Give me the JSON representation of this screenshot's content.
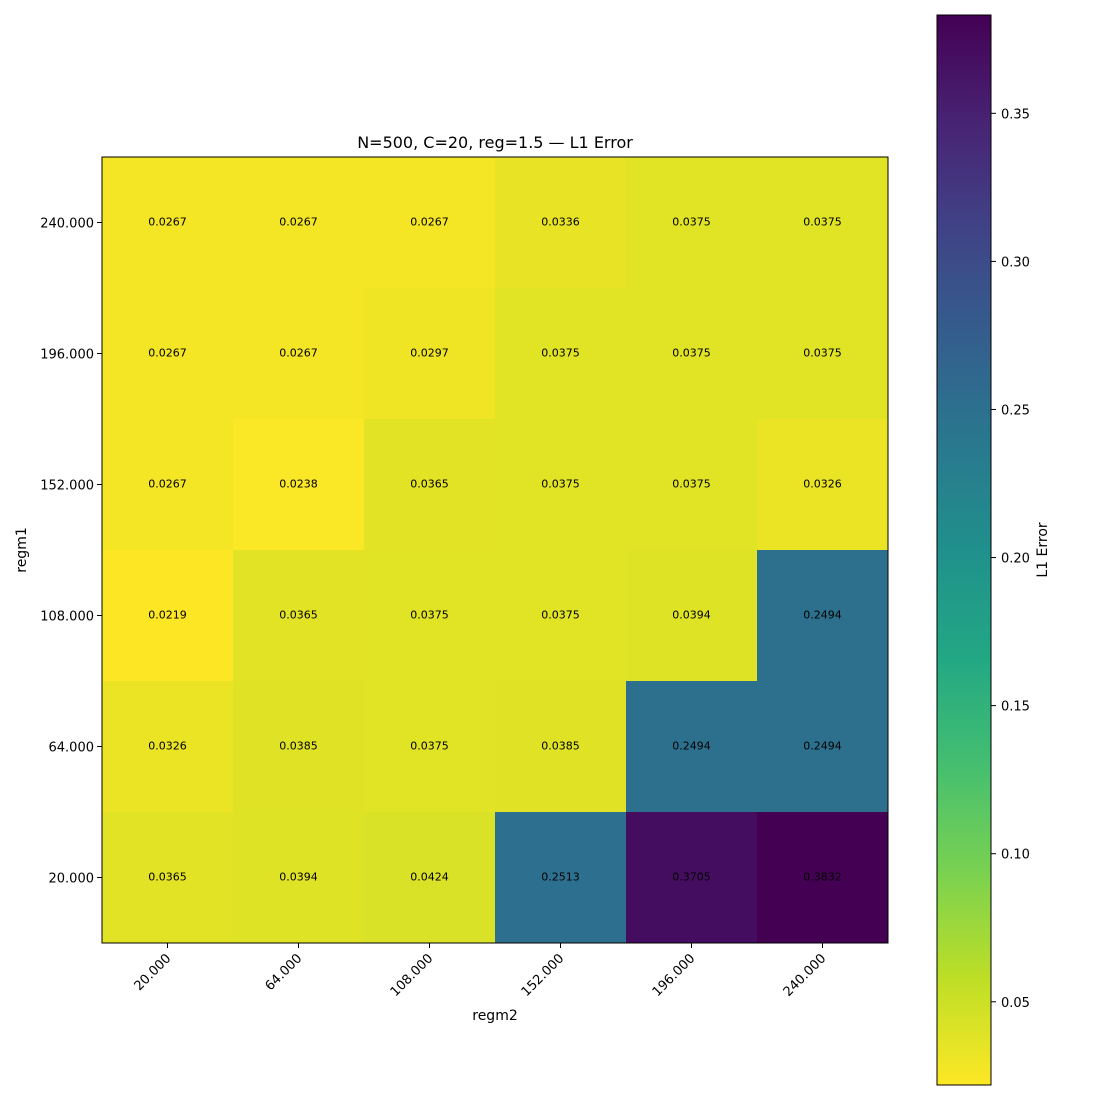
{
  "chart_data": {
    "type": "heatmap",
    "title": "N=500, C=20, reg=1.5 — L1 Error",
    "xlabel": "regm2",
    "ylabel": "regm1",
    "x_categories": [
      "20.000",
      "64.000",
      "108.000",
      "152.000",
      "196.000",
      "240.000"
    ],
    "y_categories": [
      "240.000",
      "196.000",
      "152.000",
      "108.000",
      "64.000",
      "20.000"
    ],
    "values": [
      [
        0.0267,
        0.0267,
        0.0267,
        0.0336,
        0.0375,
        0.0375
      ],
      [
        0.0267,
        0.0267,
        0.0297,
        0.0375,
        0.0375,
        0.0375
      ],
      [
        0.0267,
        0.0238,
        0.0365,
        0.0375,
        0.0375,
        0.0326
      ],
      [
        0.0219,
        0.0365,
        0.0375,
        0.0375,
        0.0394,
        0.2494
      ],
      [
        0.0326,
        0.0385,
        0.0375,
        0.0385,
        0.2494,
        0.2494
      ],
      [
        0.0365,
        0.0394,
        0.0424,
        0.2513,
        0.3705,
        0.3832
      ]
    ],
    "cell_labels": [
      [
        "0.0267",
        "0.0267",
        "0.0267",
        "0.0336",
        "0.0375",
        "0.0375"
      ],
      [
        "0.0267",
        "0.0267",
        "0.0297",
        "0.0375",
        "0.0375",
        "0.0375"
      ],
      [
        "0.0267",
        "0.0238",
        "0.0365",
        "0.0375",
        "0.0375",
        "0.0326"
      ],
      [
        "0.0219",
        "0.0365",
        "0.0375",
        "0.0375",
        "0.0394",
        "0.2494"
      ],
      [
        "0.0326",
        "0.0385",
        "0.0375",
        "0.0385",
        "0.2494",
        "0.2494"
      ],
      [
        "0.0365",
        "0.0394",
        "0.0424",
        "0.2513",
        "0.3705",
        "0.3832"
      ]
    ],
    "colormap": "viridis",
    "colorbar": {
      "label": "L1 Error",
      "range": [
        0.0219,
        0.3832
      ],
      "ticks": [
        0.05,
        0.1,
        0.15,
        0.2,
        0.25,
        0.3,
        0.35
      ],
      "tick_labels": [
        "0.05",
        "0.10",
        "0.15",
        "0.20",
        "0.25",
        "0.30",
        "0.35"
      ]
    },
    "grid": false
  }
}
